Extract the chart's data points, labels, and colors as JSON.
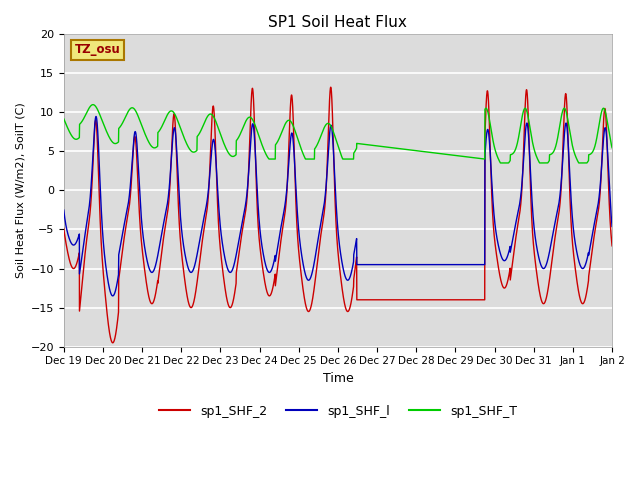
{
  "title": "SP1 Soil Heat Flux",
  "xlabel": "Time",
  "ylabel": "Soil Heat Flux (W/m2), SoilT (C)",
  "ylim": [
    -20,
    20
  ],
  "bg_color": "#dcdcdc",
  "fig_bg": "#ffffff",
  "tz_label": "TZ_osu",
  "xtick_labels": [
    "Dec 19",
    "Dec 20",
    "Dec 21",
    "Dec 22",
    "Dec 23",
    "Dec 24",
    "Dec 25",
    "Dec 26",
    "Dec 27",
    "Dec 28",
    "Dec 29",
    "Dec 30",
    "Dec 31",
    "Jan 1",
    "Jan 2"
  ],
  "legend": [
    {
      "label": "sp1_SHF_2",
      "color": "#cc0000"
    },
    {
      "label": "sp1_SHF_l",
      "color": "#0000bb"
    },
    {
      "label": "sp1_SHF_T",
      "color": "#00cc00"
    }
  ],
  "linewidth": 1.0
}
